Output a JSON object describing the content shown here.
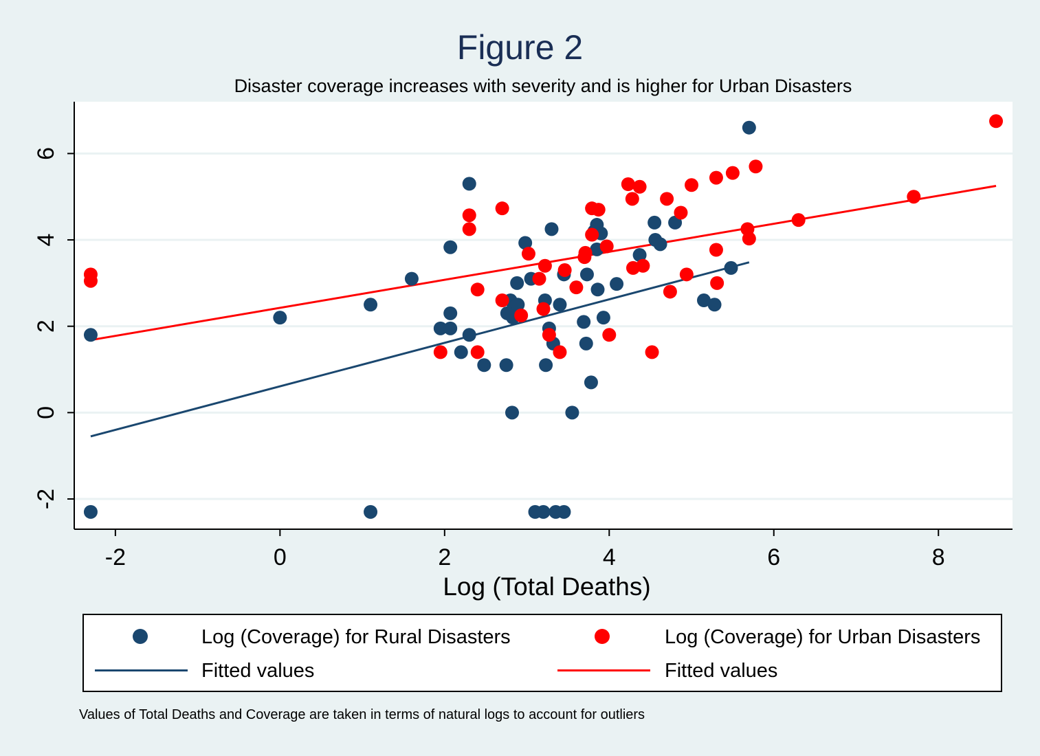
{
  "chart_data": {
    "type": "scatter",
    "title": "Figure 2",
    "subtitle": "Disaster coverage increases with severity and is higher for Urban Disasters",
    "xlabel": "Log (Total Deaths)",
    "ylabel": "",
    "xlim": [
      -2.5,
      8.9
    ],
    "ylim": [
      -2.7,
      7.2
    ],
    "xticks": [
      -2,
      0,
      2,
      4,
      6,
      8
    ],
    "yticks": [
      -2,
      0,
      2,
      4,
      6
    ],
    "grid": true,
    "legend_position": "bottom",
    "note": "Values of Total Deaths and Coverage are taken in terms of natural logs to account for outliers",
    "series": [
      {
        "name": "Log (Coverage) for Rural Disasters",
        "kind": "scatter",
        "color": "#1a476f",
        "points": [
          [
            -2.3,
            1.8
          ],
          [
            -2.3,
            -2.3
          ],
          [
            0.0,
            2.2
          ],
          [
            1.1,
            2.5
          ],
          [
            1.1,
            -2.3
          ],
          [
            1.6,
            3.1
          ],
          [
            1.95,
            1.95
          ],
          [
            2.07,
            3.83
          ],
          [
            2.07,
            2.3
          ],
          [
            2.07,
            1.95
          ],
          [
            2.2,
            1.4
          ],
          [
            2.3,
            5.3
          ],
          [
            2.3,
            1.8
          ],
          [
            2.48,
            1.1
          ],
          [
            2.75,
            1.1
          ],
          [
            2.76,
            2.3
          ],
          [
            2.8,
            2.6
          ],
          [
            2.82,
            0.0
          ],
          [
            2.83,
            2.2
          ],
          [
            2.85,
            2.45
          ],
          [
            2.88,
            3.0
          ],
          [
            2.89,
            2.5
          ],
          [
            2.98,
            3.93
          ],
          [
            3.05,
            3.1
          ],
          [
            3.1,
            -2.3
          ],
          [
            3.22,
            2.6
          ],
          [
            3.23,
            1.1
          ],
          [
            3.2,
            -2.3
          ],
          [
            3.27,
            1.95
          ],
          [
            3.3,
            4.25
          ],
          [
            3.32,
            1.6
          ],
          [
            3.35,
            -2.3
          ],
          [
            3.4,
            2.5
          ],
          [
            3.45,
            3.2
          ],
          [
            3.45,
            -2.3
          ],
          [
            3.55,
            0.0
          ],
          [
            3.69,
            2.1
          ],
          [
            3.72,
            1.6
          ],
          [
            3.73,
            3.2
          ],
          [
            3.78,
            0.7
          ],
          [
            3.82,
            4.2
          ],
          [
            3.85,
            4.35
          ],
          [
            3.86,
            2.85
          ],
          [
            3.9,
            4.15
          ],
          [
            3.93,
            2.2
          ],
          [
            3.85,
            3.78
          ],
          [
            4.09,
            2.98
          ],
          [
            4.37,
            3.65
          ],
          [
            4.55,
            4.4
          ],
          [
            4.56,
            4.0
          ],
          [
            4.62,
            3.9
          ],
          [
            4.8,
            4.4
          ],
          [
            5.15,
            2.6
          ],
          [
            5.28,
            2.5
          ],
          [
            5.48,
            3.35
          ],
          [
            5.7,
            6.6
          ]
        ]
      },
      {
        "name": "Log (Coverage) for Urban Disasters",
        "kind": "scatter",
        "color": "#ff0000",
        "points": [
          [
            -2.3,
            3.2
          ],
          [
            -2.3,
            3.05
          ],
          [
            1.95,
            1.4
          ],
          [
            2.3,
            4.57
          ],
          [
            2.3,
            4.25
          ],
          [
            2.4,
            2.85
          ],
          [
            2.4,
            1.4
          ],
          [
            2.7,
            4.73
          ],
          [
            2.7,
            2.6
          ],
          [
            2.93,
            2.25
          ],
          [
            3.02,
            3.68
          ],
          [
            3.15,
            3.1
          ],
          [
            3.2,
            2.4
          ],
          [
            3.22,
            3.4
          ],
          [
            3.27,
            1.8
          ],
          [
            3.4,
            1.4
          ],
          [
            3.46,
            3.3
          ],
          [
            3.6,
            2.9
          ],
          [
            3.7,
            3.6
          ],
          [
            3.71,
            3.7
          ],
          [
            3.79,
            4.73
          ],
          [
            3.79,
            4.12
          ],
          [
            3.87,
            4.7
          ],
          [
            3.97,
            3.85
          ],
          [
            4.0,
            1.8
          ],
          [
            4.23,
            5.29
          ],
          [
            4.28,
            4.95
          ],
          [
            4.29,
            3.35
          ],
          [
            4.37,
            5.23
          ],
          [
            4.41,
            3.4
          ],
          [
            4.52,
            1.4
          ],
          [
            4.7,
            4.95
          ],
          [
            4.74,
            2.8
          ],
          [
            4.87,
            4.63
          ],
          [
            4.94,
            3.2
          ],
          [
            5.0,
            5.27
          ],
          [
            5.3,
            5.44
          ],
          [
            5.3,
            3.77
          ],
          [
            5.31,
            3.0
          ],
          [
            5.5,
            5.55
          ],
          [
            5.68,
            4.25
          ],
          [
            5.7,
            4.03
          ],
          [
            5.78,
            5.7
          ],
          [
            6.3,
            4.46
          ],
          [
            7.7,
            5.0
          ],
          [
            8.7,
            6.75
          ]
        ]
      },
      {
        "name": "Fitted values",
        "kind": "line",
        "color": "#1a476f",
        "points": [
          [
            -2.3,
            -0.55
          ],
          [
            5.7,
            3.48
          ]
        ]
      },
      {
        "name": "Fitted values",
        "kind": "line",
        "color": "#ff0000",
        "points": [
          [
            -2.3,
            1.68
          ],
          [
            8.7,
            5.25
          ]
        ]
      }
    ]
  }
}
